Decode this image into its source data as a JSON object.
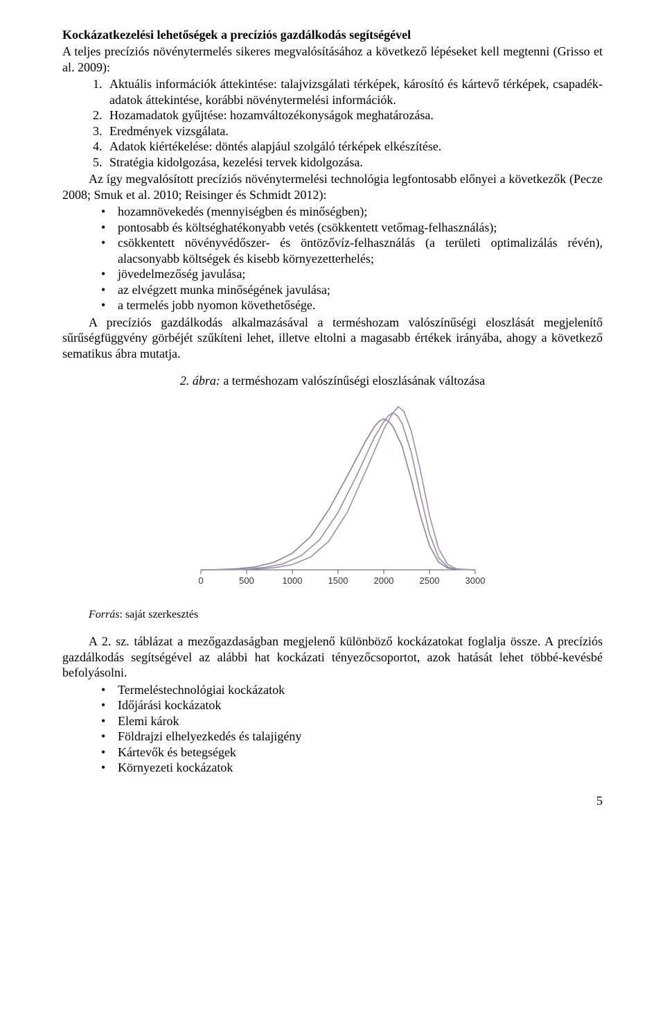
{
  "heading": "Kockázatkezelési lehetőségek a precíziós gazdálkodás segítségével",
  "intro": "A teljes precíziós növénytermelés sikeres megvalósításához a következő lépéseket kell megtenni (Grisso et al. 2009):",
  "steps": [
    "Aktuális információk áttekintése: talajvizsgálati térképek, károsító és kártevő térképek, csapadék-adatok áttekintése, korábbi növénytermelési információk.",
    "Hozamadatok gyűjtése: hozamváltozékonyságok meghatározása.",
    "Eredmények vizsgálata.",
    "Adatok kiértékelése: döntés alapjául szolgáló térképek elkészítése.",
    "Stratégia kidolgozása, kezelési tervek kidolgozása."
  ],
  "adv_intro": "Az így megvalósított precíziós növénytermelési technológia legfontosabb előnyei a következők (Pecze 2008; Smuk et al. 2010; Reisinger és Schmidt 2012):",
  "advantages": [
    "hozamnövekedés (mennyiségben és minőségben);",
    "pontosabb és költséghatékonyabb vetés (csökkentett vetőmag-felhasználás);",
    "csökkentett növényvédőszer- és öntözővíz-felhasználás (a területi optimalizálás révén), alacsonyabb költségek és kisebb környezetterhelés;",
    "jövedelmezőség javulása;",
    "az elvégzett munka minőségének javulása;",
    "a termelés jobb nyomon követhetősége."
  ],
  "para_after_adv": "A precíziós gazdálkodás alkalmazásával a terméshozam valószínűségi eloszlását megjelenítő sűrűségfüggvény görbéjét szűkíteni lehet, illetve eltolni a magasabb értékek irányába, ahogy a következő sematikus ábra mutatja.",
  "figure": {
    "caption_num": "2. ábra:",
    "caption_text": " a terméshozam valószínűségi eloszlásának változása",
    "type": "line",
    "x_ticks": [
      0,
      500,
      1000,
      1500,
      2000,
      2500,
      3000
    ],
    "xlim": [
      0,
      3000
    ],
    "ylim": [
      0,
      1.12
    ],
    "axis_color": "#555555",
    "tick_fontsize": 13,
    "background_color": "#ffffff",
    "line_width": 1.6,
    "series": [
      {
        "color": "#8a8688",
        "points": [
          [
            0,
            0
          ],
          [
            200,
            0.002
          ],
          [
            400,
            0.008
          ],
          [
            600,
            0.02
          ],
          [
            800,
            0.05
          ],
          [
            1000,
            0.11
          ],
          [
            1200,
            0.22
          ],
          [
            1400,
            0.4
          ],
          [
            1600,
            0.62
          ],
          [
            1800,
            0.85
          ],
          [
            1900,
            0.95
          ],
          [
            1950,
            0.985
          ],
          [
            2000,
            1.0
          ],
          [
            2050,
            0.985
          ],
          [
            2100,
            0.95
          ],
          [
            2200,
            0.82
          ],
          [
            2300,
            0.6
          ],
          [
            2400,
            0.36
          ],
          [
            2500,
            0.16
          ],
          [
            2600,
            0.05
          ],
          [
            2700,
            0.012
          ],
          [
            2800,
            0.002
          ],
          [
            3000,
            0
          ]
        ]
      },
      {
        "color": "#9a8baf",
        "points": [
          [
            0,
            0
          ],
          [
            300,
            0.002
          ],
          [
            500,
            0.006
          ],
          [
            700,
            0.016
          ],
          [
            900,
            0.04
          ],
          [
            1100,
            0.095
          ],
          [
            1300,
            0.2
          ],
          [
            1500,
            0.38
          ],
          [
            1700,
            0.62
          ],
          [
            1900,
            0.88
          ],
          [
            2000,
            0.98
          ],
          [
            2050,
            1.02
          ],
          [
            2100,
            1.04
          ],
          [
            2150,
            1.02
          ],
          [
            2200,
            0.97
          ],
          [
            2300,
            0.78
          ],
          [
            2400,
            0.5
          ],
          [
            2500,
            0.24
          ],
          [
            2600,
            0.08
          ],
          [
            2700,
            0.018
          ],
          [
            2800,
            0.003
          ],
          [
            3000,
            0
          ]
        ]
      },
      {
        "color": "#9b8eb6",
        "points": [
          [
            0,
            0
          ],
          [
            400,
            0.001
          ],
          [
            600,
            0.005
          ],
          [
            800,
            0.014
          ],
          [
            1000,
            0.035
          ],
          [
            1200,
            0.085
          ],
          [
            1400,
            0.19
          ],
          [
            1600,
            0.38
          ],
          [
            1800,
            0.65
          ],
          [
            2000,
            0.93
          ],
          [
            2100,
            1.04
          ],
          [
            2160,
            1.08
          ],
          [
            2220,
            1.05
          ],
          [
            2300,
            0.92
          ],
          [
            2400,
            0.66
          ],
          [
            2500,
            0.36
          ],
          [
            2600,
            0.14
          ],
          [
            2700,
            0.035
          ],
          [
            2800,
            0.006
          ],
          [
            3000,
            0
          ]
        ]
      }
    ]
  },
  "source_label": "Forrás",
  "source_text": ": saját szerkesztés",
  "table_para": "A 2. sz. táblázat a mezőgazdaságban megjelenő különböző kockázatokat foglalja össze. A precíziós gazdálkodás segítségével az alábbi hat kockázati tényezőcsoportot, azok hatását lehet többé-kevésbé befolyásolni.",
  "risk_factors": [
    "Termeléstechnológiai kockázatok",
    "Időjárási kockázatok",
    "Elemi károk",
    "Földrajzi elhelyezkedés és talajigény",
    "Kártevők és betegségek",
    "Környezeti kockázatok"
  ],
  "page_number": "5"
}
